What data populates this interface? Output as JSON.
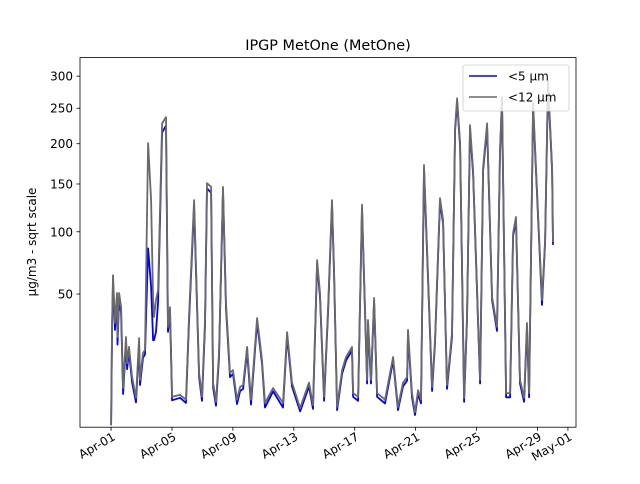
{
  "chart_data": {
    "type": "line",
    "title": "IPGP MetOne (MetOne)",
    "xlabel": "",
    "ylabel": "µg/m3 - sqrt scale",
    "yscale": "sqrt",
    "ylim": [
      0.65,
      331
    ],
    "xlim_days_from_apr01": [
      -2.04,
      30.53
    ],
    "yticks": [
      50,
      100,
      150,
      200,
      250,
      300
    ],
    "xticks": [
      {
        "day": 0,
        "label": "Apr-01"
      },
      {
        "day": 4,
        "label": "Apr-05"
      },
      {
        "day": 8,
        "label": "Apr-09"
      },
      {
        "day": 12,
        "label": "Apr-13"
      },
      {
        "day": 16,
        "label": "Apr-17"
      },
      {
        "day": 20,
        "label": "Apr-21"
      },
      {
        "day": 24,
        "label": "Apr-25"
      },
      {
        "day": 28,
        "label": "Apr-29"
      },
      {
        "day": 30,
        "label": "May-01"
      }
    ],
    "legend_position": "top-right",
    "x_days_from_apr01": [
      0.0,
      0.07,
      0.13,
      0.26,
      0.39,
      0.42,
      0.53,
      0.66,
      0.79,
      0.98,
      1.05,
      1.18,
      1.38,
      1.64,
      1.84,
      1.9,
      2.1,
      2.23,
      2.43,
      2.63,
      2.76,
      2.82,
      2.95,
      3.09,
      3.35,
      3.61,
      3.74,
      3.87,
      4.01,
      4.53,
      4.92,
      5.12,
      5.45,
      5.78,
      5.97,
      6.17,
      6.3,
      6.57,
      6.7,
      6.89,
      7.09,
      7.35,
      7.55,
      7.81,
      8.01,
      8.27,
      8.47,
      8.67,
      8.93,
      9.19,
      9.59,
      9.91,
      10.11,
      10.64,
      11.29,
      11.56,
      11.88,
      12.41,
      13.0,
      13.26,
      13.53,
      13.72,
      13.99,
      14.25,
      14.51,
      14.64,
      14.84,
      15.17,
      15.43,
      15.82,
      15.89,
      16.22,
      16.48,
      16.81,
      16.87,
      17.07,
      17.27,
      17.47,
      17.99,
      18.52,
      18.84,
      19.17,
      19.44,
      19.5,
      19.76,
      19.96,
      20.16,
      20.35,
      20.55,
      21.08,
      21.27,
      21.6,
      21.8,
      22.06,
      22.39,
      22.59,
      22.72,
      22.92,
      23.18,
      23.37,
      23.57,
      23.77,
      24.23,
      24.43,
      24.69,
      25.02,
      25.34,
      25.54,
      25.67,
      25.94,
      26.2,
      26.4,
      26.59,
      26.85,
      27.12,
      27.31,
      27.45,
      27.71,
      27.91,
      28.3,
      28.5,
      28.69,
      28.96,
      29.02
    ],
    "series": [
      {
        "name": "<5 µm",
        "color": "#0000ff",
        "values": [
          0.8,
          30.0,
          58.0,
          29.0,
          46.0,
          22.0,
          46.0,
          38.0,
          5.6,
          23.0,
          12.5,
          19.0,
          8.5,
          3.9,
          22.0,
          7.8,
          16.5,
          18.0,
          85.0,
          55.0,
          24.0,
          24.0,
          28.0,
          45.0,
          215.0,
          225.0,
          28.0,
          39.0,
          4.3,
          4.8,
          3.8,
          33.0,
          125.0,
          10.0,
          4.2,
          31.0,
          145.0,
          140.0,
          7.2,
          3.3,
          16.5,
          142.0,
          41.0,
          10.0,
          11.0,
          3.6,
          6.3,
          6.8,
          19.0,
          3.5,
          33.0,
          14.5,
          3.0,
          6.2,
          3.0,
          26.0,
          7.4,
          2.4,
          7.4,
          2.8,
          72.0,
          48.0,
          4.2,
          39.0,
          128.0,
          66.0,
          2.6,
          11.0,
          15.5,
          19.5,
          5.0,
          4.2,
          123.0,
          8.2,
          32.0,
          8.2,
          45.0,
          5.0,
          3.7,
          15.5,
          2.6,
          7.4,
          9.0,
          27.0,
          4.9,
          1.9,
          5.6,
          3.7,
          168.0,
          6.3,
          22.5,
          130.0,
          108.0,
          6.8,
          25.5,
          218.0,
          260.0,
          196.0,
          4.0,
          34.0,
          220.0,
          162.0,
          8.2,
          166.0,
          222.0,
          46.0,
          28.5,
          187.0,
          262.0,
          4.9,
          4.9,
          96.0,
          111.0,
          8.2,
          4.0,
          30.5,
          4.9,
          252.0,
          162.0,
          43.0,
          90.0,
          288.0,
          166.0,
          88.0
        ]
      },
      {
        "name": "<12 µm",
        "color": "#696969",
        "values": [
          0.8,
          32.6,
          63.4,
          32.6,
          50.7,
          25.5,
          50.7,
          41.7,
          7.0,
          25.5,
          14.6,
          21.0,
          10.0,
          4.8,
          25.0,
          9.2,
          18.5,
          19.7,
          200.8,
          132.0,
          46.1,
          35.9,
          46.1,
          52.7,
          228.0,
          237.0,
          30.5,
          41.7,
          5.0,
          5.4,
          4.4,
          35.9,
          132.0,
          11.3,
          5.0,
          34.2,
          151.0,
          146.7,
          8.4,
          4.0,
          18.5,
          146.7,
          44.2,
          11.3,
          12.2,
          4.4,
          7.3,
          7.8,
          21.0,
          4.4,
          35.3,
          15.8,
          3.8,
          7.0,
          3.8,
          27.9,
          8.4,
          2.9,
          8.4,
          3.4,
          75.1,
          50.7,
          5.0,
          41.7,
          132.0,
          69.6,
          3.1,
          12.2,
          16.9,
          21.0,
          5.8,
          5.0,
          127.0,
          9.2,
          34.2,
          9.2,
          47.4,
          5.8,
          4.4,
          16.9,
          3.1,
          8.4,
          10.0,
          29.0,
          5.8,
          2.3,
          6.5,
          4.4,
          172.7,
          7.3,
          24.1,
          134.2,
          111.3,
          7.8,
          27.5,
          222.8,
          265.0,
          200.8,
          4.8,
          35.9,
          225.6,
          166.4,
          9.2,
          170.0,
          228.0,
          48.0,
          30.5,
          191.6,
          266.8,
          5.8,
          5.8,
          98.8,
          114.4,
          9.2,
          4.8,
          32.6,
          5.8,
          257.7,
          166.4,
          46.1,
          92.4,
          293.5,
          170.0,
          90.6
        ]
      }
    ]
  }
}
